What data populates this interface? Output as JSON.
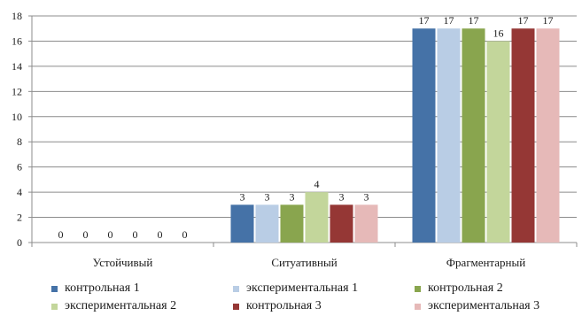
{
  "chart_data": {
    "type": "bar",
    "categories": [
      "Устойчивый",
      "Ситуативный",
      "Фрагментарный"
    ],
    "series": [
      {
        "name": "контрольная 1",
        "values": [
          0,
          3,
          17
        ],
        "color": "#4572A7"
      },
      {
        "name": "экспериментальная 1",
        "values": [
          0,
          3,
          17
        ],
        "color": "#B9CDE5"
      },
      {
        "name": "контрольная 2",
        "values": [
          0,
          3,
          17
        ],
        "color": "#89A54E"
      },
      {
        "name": "экспериментальная 2",
        "values": [
          0,
          4,
          16
        ],
        "color": "#C3D69B"
      },
      {
        "name": "контрольная 3",
        "values": [
          0,
          3,
          17
        ],
        "color": "#953735"
      },
      {
        "name": "экспериментальная 3",
        "values": [
          0,
          3,
          17
        ],
        "color": "#E6B9B8"
      }
    ],
    "ylim": [
      0,
      18
    ],
    "yticks": [
      0,
      2,
      4,
      6,
      8,
      10,
      12,
      14,
      16,
      18
    ],
    "grid": true,
    "data_labels": true,
    "legend_position": "bottom"
  }
}
